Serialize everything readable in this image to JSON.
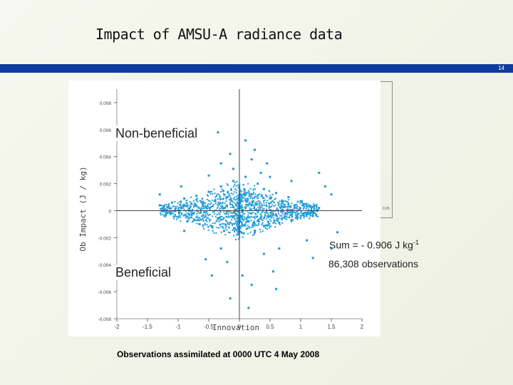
{
  "slide": {
    "title": "Impact of AMSU-A radiance data",
    "page_number": "14",
    "colors": {
      "title_bar": "#0b3b9b",
      "point": "#1e9ad6"
    }
  },
  "annotations": {
    "non_beneficial": "Non-beneficial",
    "beneficial": "Beneficial",
    "sum_prefix": "Sum =  - 0.906 J kg",
    "sum_exponent": "-1",
    "observation_count": "86,308 observations",
    "bracket_label": "0.05"
  },
  "footnote": "Observations assimilated at 0000 UTC 4 May 2008",
  "chart_data": {
    "type": "scatter",
    "xlabel": "Innovation",
    "ylabel": "Ob Impact (J / kg)",
    "xlim": [
      -2,
      2
    ],
    "ylim": [
      -0.008,
      0.009
    ],
    "x_ticks": [
      -2,
      -1.5,
      -1,
      -0.5,
      0,
      0.5,
      1,
      1.5,
      2
    ],
    "x_tick_labels": [
      "-2",
      "-1.5",
      "-1",
      "-0.5",
      "0",
      "0.5",
      "1",
      "1.5",
      "2"
    ],
    "y_ticks": [
      0.008,
      0.006,
      0.004,
      0.002,
      0,
      -0.002,
      -0.004,
      -0.006,
      -0.008
    ],
    "y_tick_labels": [
      "0.008",
      "0.006",
      "0.004",
      "0.002",
      "0",
      "-0.002",
      "-0.004",
      "-0.006",
      "-0.008"
    ],
    "grid": false,
    "reference_lines": {
      "x": 0,
      "y": 0
    },
    "series": [
      {
        "points": [
          [
            -1.3,
            0.0004
          ],
          [
            -1.2,
            -0.0003
          ],
          [
            -1.1,
            0.0006
          ],
          [
            -1.0,
            -0.0005
          ],
          [
            -0.95,
            0.0002
          ],
          [
            -0.9,
            0.0009
          ],
          [
            -0.85,
            -0.0008
          ],
          [
            -0.8,
            0.0003
          ],
          [
            -0.75,
            -0.0002
          ],
          [
            -0.7,
            0.0011
          ],
          [
            -0.65,
            -0.001
          ],
          [
            -0.6,
            0.0005
          ],
          [
            -0.55,
            -0.0004
          ],
          [
            -0.5,
            0.0014
          ],
          [
            -0.45,
            -0.0012
          ],
          [
            -0.4,
            0.0007
          ],
          [
            -0.35,
            -0.0006
          ],
          [
            -0.3,
            0.0018
          ],
          [
            -0.25,
            -0.0015
          ],
          [
            -0.2,
            0.001
          ],
          [
            -0.15,
            -0.0009
          ],
          [
            -0.1,
            0.0022
          ],
          [
            -0.05,
            0.0004
          ],
          [
            0.05,
            -0.0004
          ],
          [
            0.1,
            0.0025
          ],
          [
            0.15,
            -0.0008
          ],
          [
            0.2,
            0.0012
          ],
          [
            0.25,
            -0.0016
          ],
          [
            0.3,
            0.002
          ],
          [
            0.35,
            -0.0005
          ],
          [
            0.4,
            0.0016
          ],
          [
            0.45,
            -0.0011
          ],
          [
            0.5,
            0.0009
          ],
          [
            0.55,
            -0.0003
          ],
          [
            0.6,
            0.0013
          ],
          [
            0.65,
            -0.0009
          ],
          [
            0.7,
            0.0006
          ],
          [
            0.75,
            -0.0002
          ],
          [
            0.8,
            0.001
          ],
          [
            0.85,
            -0.0007
          ],
          [
            0.9,
            0.0004
          ],
          [
            0.95,
            -0.0005
          ],
          [
            1.0,
            0.0007
          ],
          [
            1.05,
            -0.0002
          ],
          [
            1.1,
            0.0003
          ],
          [
            1.2,
            -0.0004
          ],
          [
            1.3,
            0.0002
          ],
          [
            -0.3,
            0.0035
          ],
          [
            0.25,
            0.0045
          ],
          [
            0.2,
            0.0038
          ],
          [
            -0.15,
            0.0042
          ],
          [
            0.35,
            0.0028
          ],
          [
            -0.5,
            0.0026
          ],
          [
            0.5,
            0.0025
          ],
          [
            -0.35,
            0.0058
          ],
          [
            -0.95,
            0.0018
          ],
          [
            1.5,
            0.0012
          ],
          [
            1.4,
            0.0018
          ],
          [
            0.65,
            -0.0028
          ],
          [
            0.4,
            -0.0032
          ],
          [
            -0.3,
            -0.0028
          ],
          [
            -0.2,
            -0.0038
          ],
          [
            0.55,
            -0.0045
          ],
          [
            -0.55,
            -0.0036
          ],
          [
            1.1,
            -0.0022
          ],
          [
            0.2,
            -0.0055
          ],
          [
            -0.15,
            -0.0065
          ],
          [
            0.6,
            -0.0058
          ],
          [
            0.15,
            -0.0072
          ],
          [
            -0.9,
            -0.0015
          ],
          [
            1.5,
            -0.0028
          ],
          [
            1.3,
            0.0028
          ],
          [
            -1.3,
            0.0012
          ],
          [
            0.05,
            -0.0048
          ],
          [
            0.45,
            0.0035
          ],
          [
            -0.45,
            -0.0048
          ],
          [
            0.85,
            0.0022
          ],
          [
            1.6,
            -0.0016
          ],
          [
            1.2,
            -0.0035
          ],
          [
            -0.1,
            0.0031
          ],
          [
            0.1,
            0.0052
          ]
        ]
      }
    ]
  }
}
